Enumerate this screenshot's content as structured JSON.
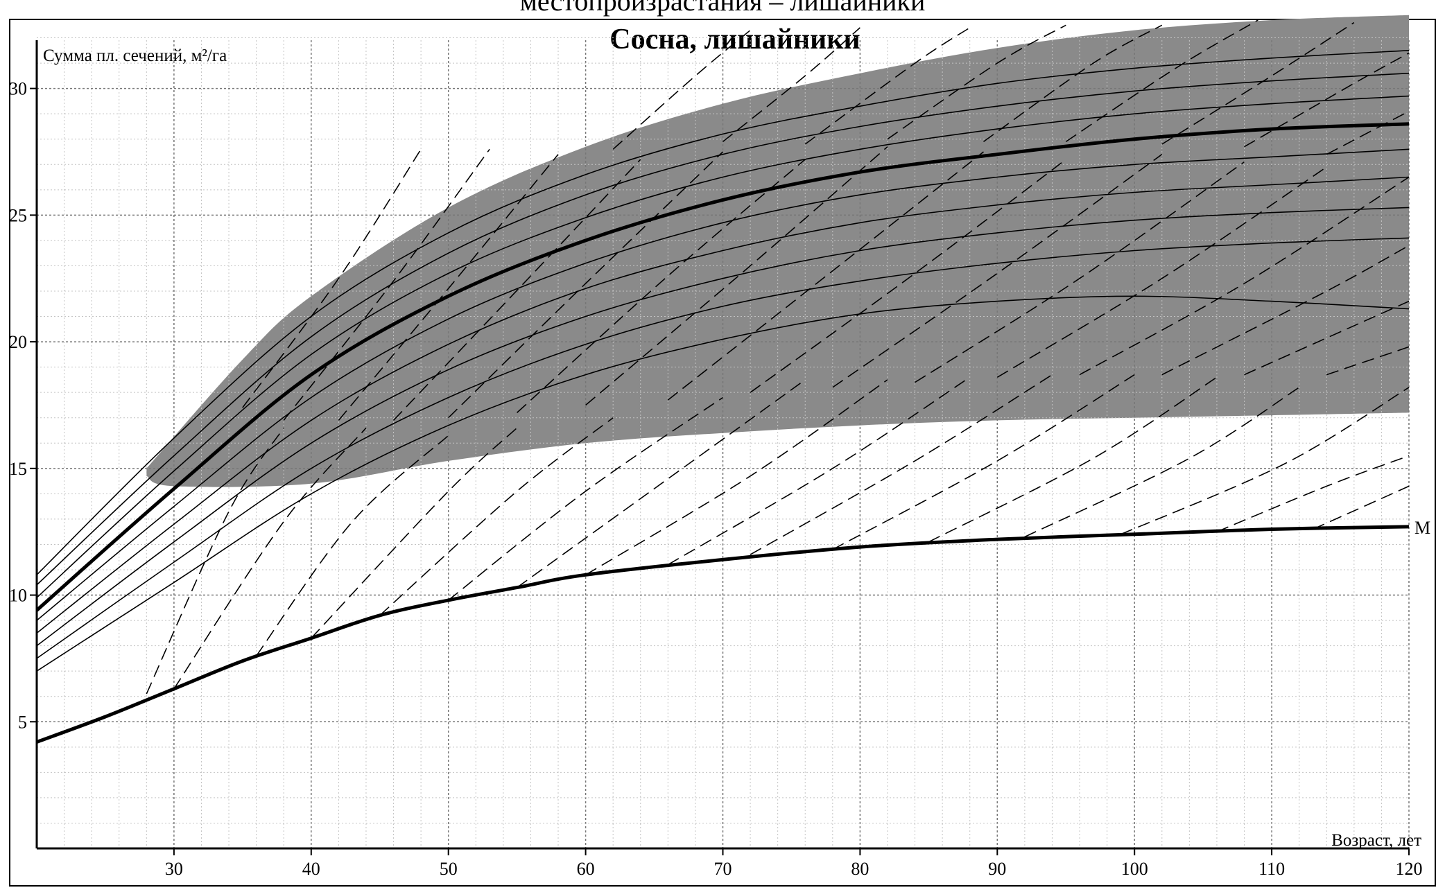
{
  "page": {
    "top_caption": "местопроизрастания – лишайники"
  },
  "chart_data": {
    "type": "line",
    "title": "Сосна, лишайники",
    "xlabel": "Возраст, лет",
    "ylabel": "Сумма пл. сечений, м²/га",
    "xlim": [
      20,
      120
    ],
    "ylim": [
      0,
      33
    ],
    "xticks": [
      30,
      40,
      50,
      60,
      70,
      80,
      90,
      100,
      110,
      120
    ],
    "yticks": [
      5,
      10,
      15,
      20,
      25,
      30
    ],
    "grid": true,
    "shaded_band": {
      "color": "#8a8a8a",
      "upper": [
        [
          28,
          15
        ],
        [
          35,
          19.3
        ],
        [
          40,
          21.8
        ],
        [
          50,
          25.3
        ],
        [
          60,
          27.7
        ],
        [
          70,
          29.4
        ],
        [
          80,
          30.6
        ],
        [
          90,
          31.6
        ],
        [
          100,
          32.3
        ],
        [
          110,
          32.7
        ],
        [
          120,
          32.9
        ]
      ],
      "lower": [
        [
          28,
          14.7
        ],
        [
          30,
          14.3
        ],
        [
          40,
          14.4
        ],
        [
          50,
          15.3
        ],
        [
          60,
          16
        ],
        [
          70,
          16.4
        ],
        [
          80,
          16.7
        ],
        [
          90,
          16.9
        ],
        [
          100,
          17
        ],
        [
          110,
          17.1
        ],
        [
          120,
          17.2
        ]
      ]
    },
    "series": [
      {
        "style": "thick",
        "points": [
          [
            20,
            9.4
          ],
          [
            30,
            14.2
          ],
          [
            40,
            18.7
          ],
          [
            50,
            21.8
          ],
          [
            60,
            24
          ],
          [
            70,
            25.6
          ],
          [
            80,
            26.7
          ],
          [
            90,
            27.4
          ],
          [
            100,
            28
          ],
          [
            110,
            28.4
          ],
          [
            120,
            28.6
          ]
        ]
      },
      {
        "style": "thin",
        "points": [
          [
            20,
            10.8
          ],
          [
            30,
            16.2
          ],
          [
            40,
            21
          ],
          [
            50,
            24.3
          ],
          [
            60,
            26.6
          ],
          [
            70,
            28.2
          ],
          [
            80,
            29.3
          ],
          [
            90,
            30.2
          ],
          [
            100,
            30.8
          ],
          [
            110,
            31.2
          ],
          [
            120,
            31.5
          ]
        ]
      },
      {
        "style": "thin",
        "points": [
          [
            20,
            10.4
          ],
          [
            30,
            15.5
          ],
          [
            40,
            20.2
          ],
          [
            50,
            23.5
          ],
          [
            60,
            25.8
          ],
          [
            70,
            27.4
          ],
          [
            80,
            28.5
          ],
          [
            90,
            29.3
          ],
          [
            100,
            29.9
          ],
          [
            110,
            30.3
          ],
          [
            120,
            30.6
          ]
        ]
      },
      {
        "style": "thin",
        "points": [
          [
            20,
            9.9
          ],
          [
            30,
            14.9
          ],
          [
            40,
            19.5
          ],
          [
            50,
            22.7
          ],
          [
            60,
            24.9
          ],
          [
            70,
            26.5
          ],
          [
            80,
            27.6
          ],
          [
            90,
            28.4
          ],
          [
            100,
            29
          ],
          [
            110,
            29.4
          ],
          [
            120,
            29.7
          ]
        ]
      },
      {
        "style": "thin",
        "points": [
          [
            20,
            9
          ],
          [
            30,
            13.5
          ],
          [
            40,
            17.8
          ],
          [
            50,
            20.9
          ],
          [
            60,
            23.1
          ],
          [
            70,
            24.7
          ],
          [
            80,
            25.8
          ],
          [
            90,
            26.5
          ],
          [
            100,
            27
          ],
          [
            110,
            27.3
          ],
          [
            120,
            27.6
          ]
        ]
      },
      {
        "style": "thin",
        "points": [
          [
            20,
            8.5
          ],
          [
            30,
            12.8
          ],
          [
            40,
            16.9
          ],
          [
            50,
            19.9
          ],
          [
            60,
            22.1
          ],
          [
            70,
            23.6
          ],
          [
            80,
            24.7
          ],
          [
            90,
            25.4
          ],
          [
            100,
            25.9
          ],
          [
            110,
            26.2
          ],
          [
            120,
            26.5
          ]
        ]
      },
      {
        "style": "thin",
        "points": [
          [
            20,
            8
          ],
          [
            30,
            12.1
          ],
          [
            40,
            16
          ],
          [
            50,
            18.9
          ],
          [
            60,
            21
          ],
          [
            70,
            22.5
          ],
          [
            80,
            23.6
          ],
          [
            90,
            24.3
          ],
          [
            100,
            24.8
          ],
          [
            110,
            25.1
          ],
          [
            120,
            25.3
          ]
        ]
      },
      {
        "style": "thin",
        "points": [
          [
            20,
            7.5
          ],
          [
            30,
            11.3
          ],
          [
            40,
            15
          ],
          [
            50,
            17.8
          ],
          [
            60,
            19.9
          ],
          [
            70,
            21.4
          ],
          [
            80,
            22.4
          ],
          [
            90,
            23.1
          ],
          [
            100,
            23.6
          ],
          [
            110,
            23.9
          ],
          [
            120,
            24.1
          ]
        ]
      },
      {
        "style": "thin",
        "points": [
          [
            20,
            7
          ],
          [
            30,
            10.5
          ],
          [
            40,
            14
          ],
          [
            50,
            16.7
          ],
          [
            60,
            18.7
          ],
          [
            70,
            20.1
          ],
          [
            80,
            21.1
          ],
          [
            90,
            21.6
          ],
          [
            100,
            21.8
          ],
          [
            110,
            21.6
          ],
          [
            120,
            21.3
          ]
        ]
      },
      {
        "style": "thick",
        "label": "M",
        "points": [
          [
            20,
            4.2
          ],
          [
            25,
            5.2
          ],
          [
            30,
            6.3
          ],
          [
            35,
            7.4
          ],
          [
            40,
            8.3
          ],
          [
            45,
            9.2
          ],
          [
            50,
            9.8
          ],
          [
            55,
            10.3
          ],
          [
            60,
            10.8
          ],
          [
            70,
            11.4
          ],
          [
            80,
            11.9
          ],
          [
            90,
            12.2
          ],
          [
            100,
            12.4
          ],
          [
            110,
            12.6
          ],
          [
            120,
            12.7
          ]
        ]
      }
    ],
    "dashed_lines": [
      {
        "points": [
          [
            28,
            6.1
          ],
          [
            34,
            13.3
          ],
          [
            38,
            16.6
          ]
        ]
      },
      {
        "points": [
          [
            30,
            6.3
          ],
          [
            38,
            12.9
          ],
          [
            44,
            16.6
          ]
        ]
      },
      {
        "points": [
          [
            36,
            7.6
          ],
          [
            43,
            12.9
          ],
          [
            50,
            16.3
          ]
        ]
      },
      {
        "points": [
          [
            40,
            8.3
          ],
          [
            50,
            14.1
          ],
          [
            55,
            16.6
          ]
        ]
      },
      {
        "points": [
          [
            45,
            9.2
          ],
          [
            55,
            14.1
          ],
          [
            62,
            17
          ]
        ]
      },
      {
        "points": [
          [
            50,
            9.8
          ],
          [
            60,
            14.1
          ],
          [
            70,
            17.8
          ]
        ]
      },
      {
        "points": [
          [
            55,
            10.3
          ],
          [
            65,
            14.2
          ],
          [
            76,
            18.5
          ]
        ]
      },
      {
        "points": [
          [
            60,
            10.8
          ],
          [
            72,
            14.7
          ],
          [
            82,
            18.5
          ]
        ]
      },
      {
        "points": [
          [
            66,
            11.2
          ],
          [
            78,
            15
          ],
          [
            88,
            18.6
          ]
        ]
      },
      {
        "points": [
          [
            72,
            11.6
          ],
          [
            84,
            15.3
          ],
          [
            94,
            18.7
          ]
        ]
      },
      {
        "points": [
          [
            78,
            11.8
          ],
          [
            90,
            15.3
          ],
          [
            100,
            18.7
          ]
        ]
      },
      {
        "points": [
          [
            85,
            12.1
          ],
          [
            97,
            15.4
          ],
          [
            106,
            18.6
          ]
        ]
      },
      {
        "points": [
          [
            92,
            12.3
          ],
          [
            104,
            15.4
          ],
          [
            112,
            18.2
          ]
        ]
      },
      {
        "points": [
          [
            99,
            12.4
          ],
          [
            111,
            15.2
          ],
          [
            120,
            18.2
          ]
        ]
      },
      {
        "points": [
          [
            106,
            12.5
          ],
          [
            114,
            14.3
          ],
          [
            120,
            15.5
          ]
        ]
      },
      {
        "points": [
          [
            113,
            12.6
          ],
          [
            120,
            14.3
          ]
        ]
      },
      {
        "points": [
          [
            35,
            17.4
          ],
          [
            42,
            22.5
          ],
          [
            48,
            27.6
          ]
        ]
      },
      {
        "points": [
          [
            38,
            16.9
          ],
          [
            46,
            22.4
          ],
          [
            53,
            27.6
          ]
        ]
      },
      {
        "points": [
          [
            42,
            16.9
          ],
          [
            50,
            22.1
          ],
          [
            58,
            27.4
          ]
        ]
      },
      {
        "points": [
          [
            46,
            16.9
          ],
          [
            56,
            22.6
          ],
          [
            64,
            27.2
          ]
        ]
      },
      {
        "points": [
          [
            50,
            17
          ],
          [
            60,
            22.3
          ],
          [
            70,
            27.5
          ]
        ]
      },
      {
        "points": [
          [
            55,
            17.2
          ],
          [
            66,
            22.6
          ],
          [
            76,
            27.2
          ]
        ]
      },
      {
        "points": [
          [
            60,
            17.5
          ],
          [
            72,
            23
          ],
          [
            82,
            27.7
          ]
        ]
      },
      {
        "points": [
          [
            66,
            17.7
          ],
          [
            78,
            22.8
          ],
          [
            89,
            27.5
          ]
        ]
      },
      {
        "points": [
          [
            72,
            18
          ],
          [
            84,
            22.7
          ],
          [
            95,
            27.2
          ]
        ]
      },
      {
        "points": [
          [
            78,
            18.2
          ],
          [
            90,
            22.7
          ],
          [
            102,
            27.4
          ]
        ]
      },
      {
        "points": [
          [
            84,
            18.4
          ],
          [
            96,
            22.5
          ],
          [
            108,
            27.1
          ]
        ]
      },
      {
        "points": [
          [
            90,
            18.6
          ],
          [
            102,
            22.5
          ],
          [
            114,
            26.9
          ]
        ]
      },
      {
        "points": [
          [
            96,
            18.7
          ],
          [
            108,
            22.3
          ],
          [
            120,
            26.5
          ]
        ]
      },
      {
        "points": [
          [
            102,
            18.7
          ],
          [
            114,
            22
          ],
          [
            120,
            23.8
          ]
        ]
      },
      {
        "points": [
          [
            108,
            18.7
          ],
          [
            120,
            21.6
          ]
        ]
      },
      {
        "points": [
          [
            114,
            18.7
          ],
          [
            120,
            19.8
          ]
        ]
      },
      {
        "points": [
          [
            62,
            27.6
          ],
          [
            68,
            30.5
          ],
          [
            72,
            32.3
          ]
        ]
      },
      {
        "points": [
          [
            70,
            27.9
          ],
          [
            76,
            30.5
          ],
          [
            80,
            32.4
          ]
        ]
      },
      {
        "points": [
          [
            76,
            27.8
          ],
          [
            84,
            31
          ],
          [
            88,
            32.4
          ]
        ]
      },
      {
        "points": [
          [
            82,
            28
          ],
          [
            90,
            31
          ],
          [
            95,
            32.5
          ]
        ]
      },
      {
        "points": [
          [
            89,
            27.9
          ],
          [
            97,
            31
          ],
          [
            102,
            32.5
          ]
        ]
      },
      {
        "points": [
          [
            95,
            27.9
          ],
          [
            103,
            30.8
          ],
          [
            109,
            32.7
          ]
        ]
      },
      {
        "points": [
          [
            102,
            27.8
          ],
          [
            110,
            30.5
          ],
          [
            116,
            32.6
          ]
        ]
      },
      {
        "points": [
          [
            108,
            27.7
          ],
          [
            116,
            30.2
          ],
          [
            120,
            31.4
          ]
        ]
      },
      {
        "points": [
          [
            114,
            27.4
          ],
          [
            120,
            29.1
          ]
        ]
      }
    ]
  }
}
